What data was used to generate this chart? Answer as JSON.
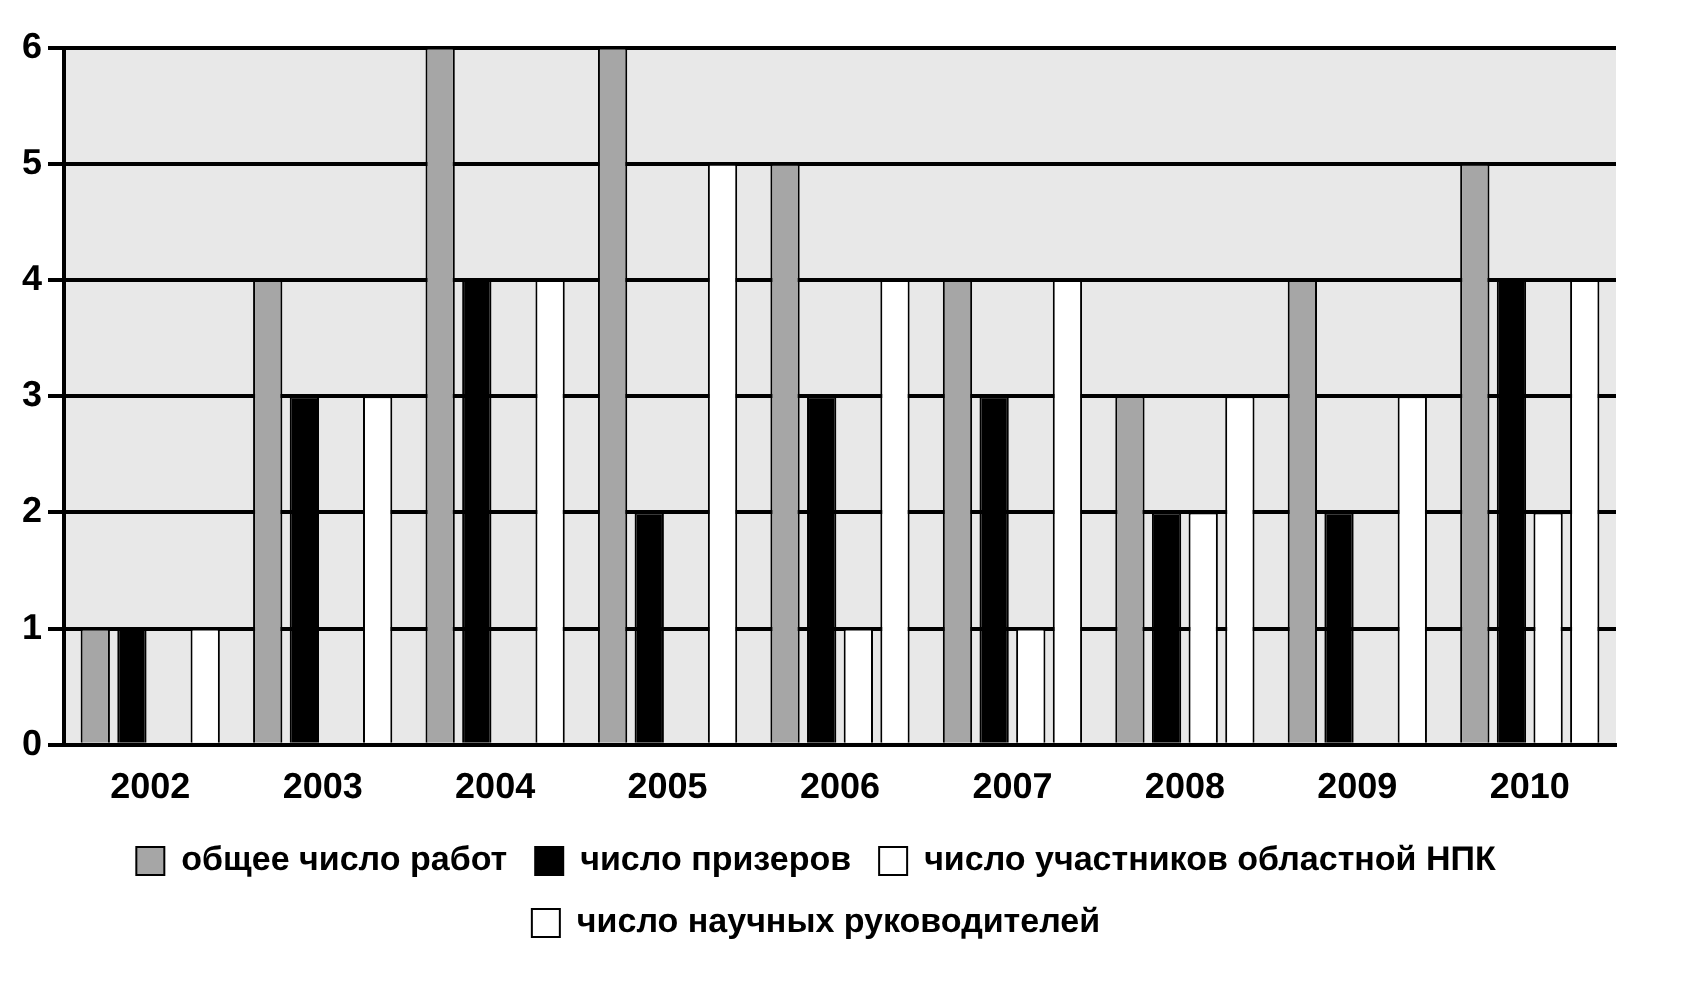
{
  "chart_data": {
    "type": "bar",
    "categories": [
      "2002",
      "2003",
      "2004",
      "2005",
      "2006",
      "2007",
      "2008",
      "2009",
      "2010"
    ],
    "series": [
      {
        "name": "общее число работ",
        "color": "#a6a6a6",
        "values": [
          1,
          4,
          6,
          6,
          5,
          4,
          3,
          4,
          5
        ]
      },
      {
        "name": "число призеров",
        "color": "#000000",
        "values": [
          1,
          3,
          4,
          2,
          3,
          3,
          2,
          2,
          4
        ]
      },
      {
        "name": "число участников областной НПК",
        "color": "#ffffff",
        "values": [
          0,
          0,
          0,
          0,
          1,
          1,
          2,
          0,
          2
        ]
      },
      {
        "name": "число научных руководителей",
        "color": "#ffffff",
        "values": [
          1,
          3,
          4,
          5,
          4,
          4,
          3,
          3,
          4
        ]
      }
    ],
    "ylim": [
      0,
      6
    ],
    "yticks": [
      0,
      1,
      2,
      3,
      4,
      5,
      6
    ],
    "grid": "y",
    "legend": "bottom"
  }
}
